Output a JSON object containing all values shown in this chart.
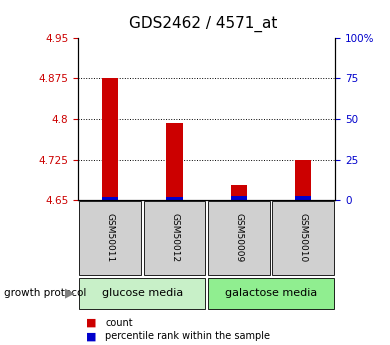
{
  "title": "GDS2462 / 4571_at",
  "samples": [
    "GSM50011",
    "GSM50012",
    "GSM50009",
    "GSM50010"
  ],
  "count_values": [
    4.875,
    4.793,
    4.678,
    4.725
  ],
  "percentile_values": [
    4.656,
    4.656,
    4.658,
    4.657
  ],
  "ylim_left": [
    4.65,
    4.95
  ],
  "yticks_left": [
    4.65,
    4.725,
    4.8,
    4.875,
    4.95
  ],
  "ytick_labels_left": [
    "4.65",
    "4.725",
    "4.8",
    "4.875",
    "4.95"
  ],
  "yticks_right": [
    0,
    25,
    50,
    75,
    100
  ],
  "ytick_labels_right": [
    "0",
    "25",
    "50",
    "75",
    "100%"
  ],
  "ylim_right": [
    0,
    100
  ],
  "bar_bottom": 4.65,
  "count_color": "#cc0000",
  "percentile_color": "#0000cc",
  "bar_width": 0.25,
  "groups": [
    {
      "label": "glucose media",
      "indices": [
        0,
        1
      ],
      "color": "#c8f0c8"
    },
    {
      "label": "galactose media",
      "indices": [
        2,
        3
      ],
      "color": "#90ee90"
    }
  ],
  "group_label": "growth protocol",
  "legend_count": "count",
  "legend_percentile": "percentile rank within the sample",
  "tick_color_left": "#cc0000",
  "tick_color_right": "#0000cc",
  "title_fontsize": 11,
  "tick_label_fontsize": 7.5,
  "sample_fontsize": 6.5,
  "group_fontsize": 8,
  "legend_fontsize": 7,
  "box_color": "#d0d0d0"
}
